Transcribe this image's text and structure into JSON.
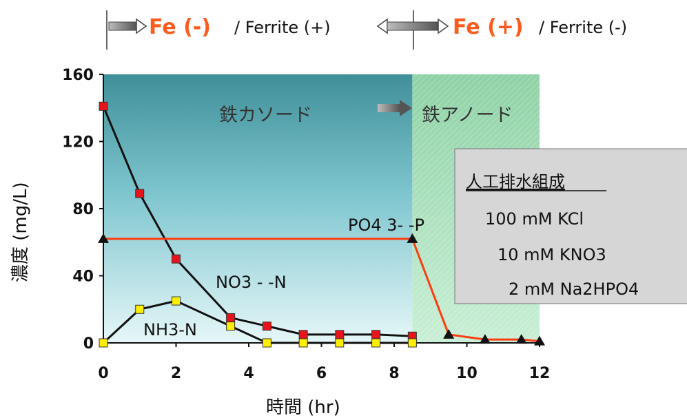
{
  "header": {
    "left_fe": "Fe (-)",
    "left_rest": "/ Ferrite (+)",
    "right_fe": "Fe (+)",
    "right_rest": "/ Ferrite (-)"
  },
  "zones": {
    "cathode": "鉄カソード",
    "anode": "鉄アノード"
  },
  "info_box": {
    "title": "人工排水組成",
    "line1": "100 mM KCl",
    "line2": "10 mM KNO3",
    "line3": "2 mM Na2HPO4"
  },
  "labels": {
    "po4": "PO4 3- -P",
    "no3": "NO3 - -N",
    "nh3": "NH3-N"
  },
  "chart_data": {
    "type": "line",
    "xlabel": "時間 (hr)",
    "ylabel": "濃度 (mg/L)",
    "xlim": [
      0,
      12
    ],
    "ylim": [
      0,
      160
    ],
    "xticks": [
      0,
      2,
      4,
      6,
      8,
      10,
      12
    ],
    "yticks": [
      0,
      40,
      80,
      120,
      160
    ],
    "switch_x": 8.5,
    "series": [
      {
        "name": "NO3-N",
        "color": "#111111",
        "marker_color": "#e8141c",
        "marker": "square",
        "x": [
          0,
          1,
          2,
          3.5,
          4.5,
          5.5,
          6.5,
          7.5,
          8.5
        ],
        "y": [
          141,
          89,
          50,
          15,
          10,
          5,
          5,
          5,
          4
        ]
      },
      {
        "name": "NH3-N",
        "color": "#111111",
        "marker_color": "#ffee00",
        "marker": "square",
        "x": [
          0,
          1,
          2,
          3.5,
          4.5,
          5.5,
          6.5,
          7.5,
          8.5
        ],
        "y": [
          0,
          20,
          25,
          10,
          0,
          0,
          0,
          0,
          0
        ]
      },
      {
        "name": "PO4-P",
        "color": "#ff3b10",
        "marker_color": "#111111",
        "marker": "triangle",
        "x": [
          0,
          8.5,
          9.5,
          10.5,
          11.5,
          12
        ],
        "y": [
          62,
          62,
          5,
          2,
          2,
          1
        ]
      }
    ]
  }
}
